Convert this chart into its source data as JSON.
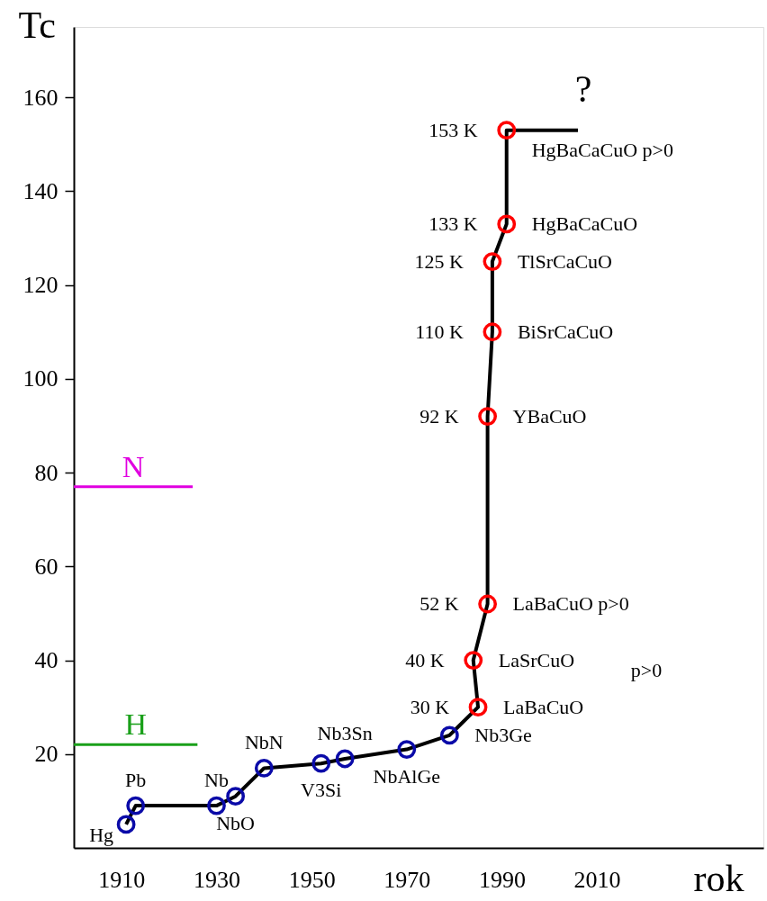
{
  "chart_data": {
    "type": "scatter",
    "xlabel": "rok",
    "ylabel": "Tc",
    "xlim": [
      1900,
      2045
    ],
    "ylim": [
      0,
      175
    ],
    "xticks": [
      1910,
      1930,
      1950,
      1970,
      1990,
      2010
    ],
    "yticks": [
      20,
      40,
      60,
      80,
      100,
      120,
      140,
      160
    ],
    "grid": false,
    "marker": "circle",
    "line_style": "solid",
    "series": [
      {
        "type": "line",
        "marker": "none",
        "color": "#000000",
        "x": [
          1911,
          1913,
          1930,
          1934,
          1940,
          1952,
          1957,
          1970,
          1979,
          1985,
          1984,
          1987,
          1987,
          1988,
          1988,
          1991,
          1991,
          2006
        ],
        "values": [
          5,
          9,
          9,
          11,
          17,
          18,
          19,
          21,
          24,
          30,
          40,
          52,
          92,
          110,
          125,
          133,
          153,
          153
        ]
      },
      {
        "color": "#0a0aa8",
        "x": [
          1911,
          1913,
          1930,
          1934,
          1940,
          1952,
          1957,
          1970,
          1979
        ],
        "values": [
          5,
          9,
          9,
          11,
          17,
          18,
          19,
          21,
          24
        ]
      },
      {
        "color": "#ff0000",
        "x": [
          1985,
          1984,
          1987,
          1987,
          1988,
          1988,
          1991,
          1991
        ],
        "values": [
          30,
          40,
          52,
          92,
          110,
          125,
          133,
          153
        ],
        "value_labels": [
          "30 K",
          "40 K",
          "52 K",
          "92 K",
          "110 K",
          "125 K",
          "133 K",
          "153 K"
        ]
      },
      {
        "type": "line",
        "marker": "none",
        "name": "N",
        "color": "#e000e0",
        "x": [
          1900,
          1925
        ],
        "values": [
          77,
          77
        ]
      },
      {
        "type": "line",
        "marker": "none",
        "name": "H",
        "color": "#1aa01a",
        "x": [
          1900,
          1926
        ],
        "values": [
          22,
          22
        ]
      }
    ],
    "annotations": [
      "?",
      {
        "text": "HgBaCaCuO p>0",
        "x": 1991,
        "y": 153
      },
      {
        "text": "HgBaCaCuO",
        "x": 1991,
        "y": 133
      },
      {
        "text": "TlSrCaCuO",
        "x": 1988,
        "y": 125
      },
      {
        "text": "BiSrCaCuO",
        "x": 1988,
        "y": 110
      },
      {
        "text": "YBaCuO",
        "x": 1987,
        "y": 92
      },
      {
        "text": "LaBaCuO p>0",
        "x": 1987,
        "y": 52
      },
      {
        "text": "LaSrCuO",
        "x": 1984,
        "y": 40
      },
      "p>0",
      {
        "text": "LaBaCuO",
        "x": 1985,
        "y": 30
      },
      {
        "text": "Nb3Ge",
        "x": 1979,
        "y": 24
      },
      {
        "text": "NbAlGe",
        "x": 1970,
        "y": 21
      },
      {
        "text": "Nb3Sn",
        "x": 1957,
        "y": 19
      },
      {
        "text": "V3Si",
        "x": 1952,
        "y": 18
      },
      {
        "text": "NbN",
        "x": 1940,
        "y": 17
      },
      {
        "text": "NbO",
        "x": 1934,
        "y": 11
      },
      {
        "text": "Nb",
        "x": 1930,
        "y": 9
      },
      {
        "text": "Pb",
        "x": 1913,
        "y": 9
      },
      {
        "text": "Hg",
        "x": 1911,
        "y": 5
      }
    ]
  }
}
